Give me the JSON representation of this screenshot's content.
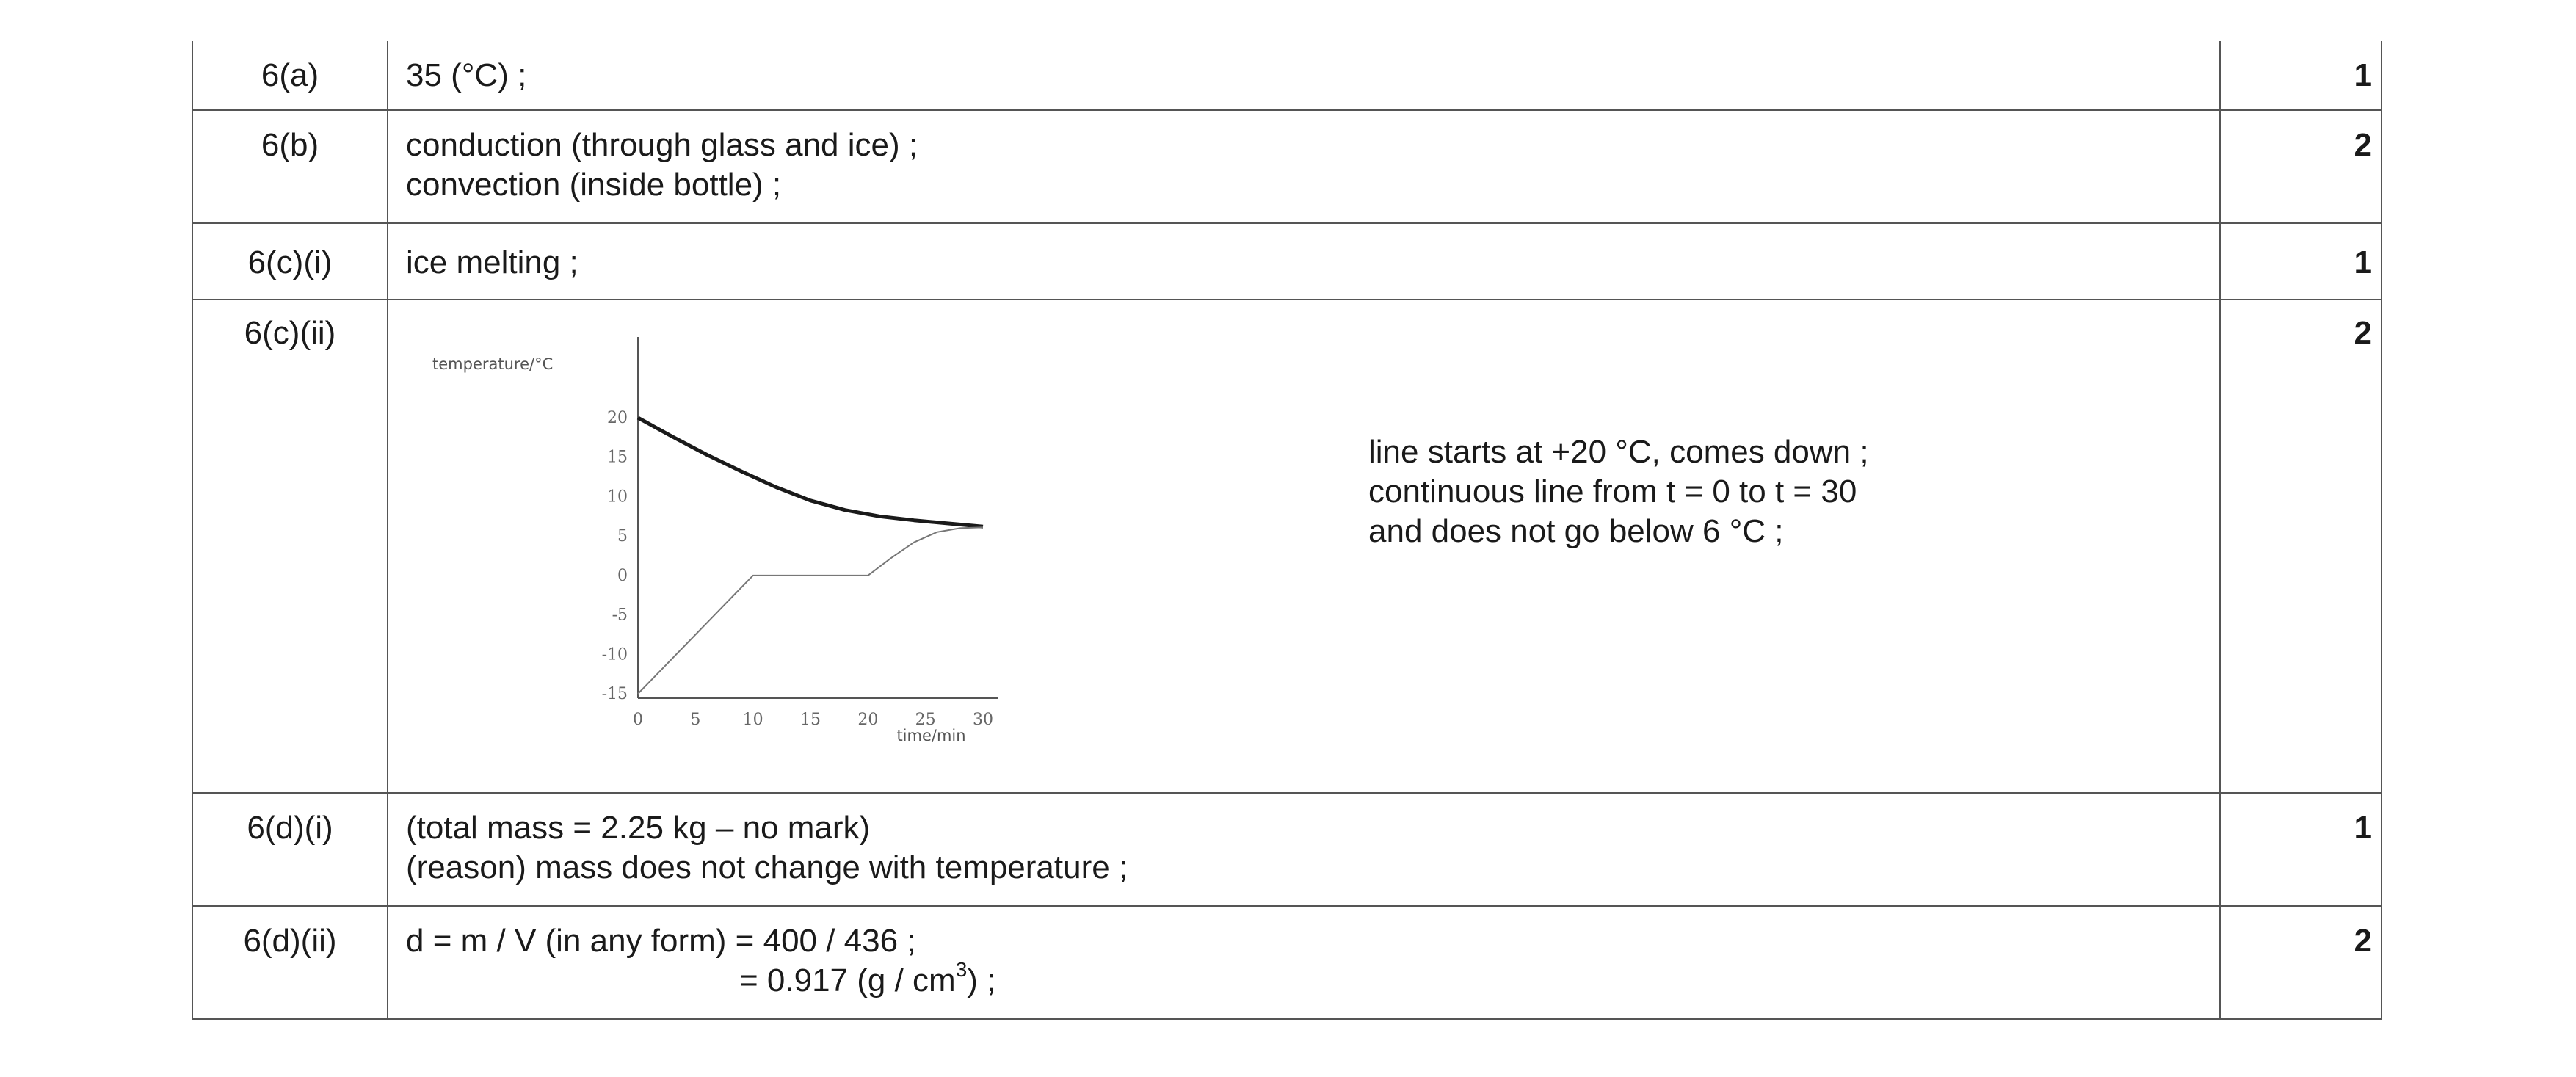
{
  "rows": [
    {
      "q": "6(a)",
      "lines": [
        "35 (°C) ;"
      ],
      "marks": "1"
    },
    {
      "q": "6(b)",
      "lines": [
        "conduction (through glass and ice) ;",
        "convection (inside bottle) ;"
      ],
      "marks": "2"
    },
    {
      "q": "6(c)(i)",
      "lines": [
        "ice melting ;"
      ],
      "marks": "1"
    },
    {
      "q": "6(c)(ii)",
      "lines": [
        "line starts at +20 °C, comes down ;",
        "continuous line from t = 0 to t = 30",
        "and does not go below 6 °C ;"
      ],
      "marks": "2"
    },
    {
      "q": "6(d)(i)",
      "lines": [
        "(total mass = 2.25 kg – no mark)",
        "(reason) mass does not change with temperature ;"
      ],
      "marks": "1"
    },
    {
      "q": "6(d)(ii)",
      "lines": [
        "d = m / V (in any form) = 400 / 436 ;",
        "= 0.917 (g / cm",
        "3",
        ") ;"
      ],
      "marks": "2"
    }
  ],
  "chart_data": {
    "type": "line",
    "ylabel": "temperature/°C",
    "xlabel": "time/min",
    "xticks": [
      0,
      5,
      10,
      15,
      20,
      25,
      30
    ],
    "yticks": [
      20,
      15,
      10,
      5,
      0,
      -5,
      -10,
      -15
    ],
    "xlim": [
      0,
      30
    ],
    "ylim": [
      -15,
      20
    ],
    "series": [
      {
        "style": "thick",
        "x": [
          0,
          3,
          6,
          9,
          12,
          15,
          18,
          21,
          24,
          27,
          30
        ],
        "y": [
          20,
          17.6,
          15.3,
          13.2,
          11.2,
          9.5,
          8.3,
          7.5,
          7.0,
          6.6,
          6.2
        ]
      },
      {
        "style": "thin",
        "x": [
          0,
          10,
          20,
          22,
          24,
          26,
          28,
          30
        ],
        "y": [
          -15,
          0,
          0,
          2.2,
          4.2,
          5.5,
          6.0,
          6.1
        ]
      }
    ],
    "line_color": "#1a1a1a",
    "axis_color": "#555555"
  }
}
